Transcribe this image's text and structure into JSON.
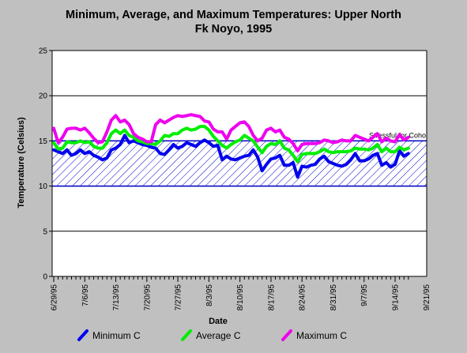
{
  "chart_data": {
    "type": "line",
    "title_line1": "Minimum, Average, and Maximum Temperatures:  Upper North",
    "title_line2": "Fk Noyo, 1995",
    "xlabel": "Date",
    "ylabel": "Temperature (Celsius)",
    "ylim": [
      0,
      25
    ],
    "yticks": [
      "0",
      "5",
      "10",
      "15",
      "20",
      "25"
    ],
    "x_start_date": "6/29/95",
    "x_tick_labels": [
      "6/29/95",
      "7/6/95",
      "7/13/95",
      "7/20/95",
      "7/27/95",
      "8/3/95",
      "8/10/95",
      "8/17/95",
      "8/24/95",
      "8/31/95",
      "9/7/95",
      "9/14/95",
      "9/21/95"
    ],
    "grid": "horizontal",
    "legend_position": "bottom",
    "threshold_band": {
      "label": "Stressful for Coho",
      "ymin": 10,
      "ymax": 15,
      "color": "#0000cc"
    },
    "series": [
      {
        "name": "Minimum C",
        "color": "#0000ee",
        "values": [
          14.0,
          13.8,
          13.6,
          14.0,
          13.4,
          13.6,
          14.0,
          13.6,
          13.8,
          13.4,
          13.2,
          12.9,
          13.1,
          14.0,
          14.2,
          14.6,
          15.6,
          14.8,
          15.0,
          14.8,
          14.6,
          14.5,
          14.3,
          14.2,
          13.6,
          13.5,
          14.0,
          14.6,
          14.2,
          14.4,
          14.8,
          14.6,
          14.4,
          14.8,
          15.1,
          14.8,
          14.4,
          14.5,
          12.9,
          13.3,
          13.0,
          12.9,
          13.1,
          13.3,
          13.4,
          14.0,
          13.2,
          11.7,
          12.4,
          13.0,
          13.1,
          13.4,
          12.3,
          12.3,
          12.6,
          11.0,
          12.2,
          12.1,
          12.3,
          12.4,
          13.0,
          13.3,
          12.7,
          12.5,
          12.3,
          12.2,
          12.4,
          12.9,
          13.6,
          12.8,
          12.8,
          13.0,
          13.4,
          13.6,
          12.3,
          12.6,
          12.1,
          12.4,
          13.9,
          13.3,
          13.6
        ]
      },
      {
        "name": "Average C",
        "color": "#00ee00",
        "values": [
          14.8,
          14.1,
          14.2,
          14.9,
          14.8,
          14.8,
          15.0,
          14.8,
          14.9,
          14.4,
          14.2,
          14.2,
          14.8,
          15.8,
          16.2,
          15.8,
          16.2,
          15.6,
          15.4,
          15.0,
          14.9,
          14.7,
          14.7,
          14.6,
          15.0,
          15.6,
          15.5,
          15.8,
          15.8,
          16.2,
          16.4,
          16.2,
          16.3,
          16.6,
          16.6,
          16.2,
          15.5,
          15.0,
          14.5,
          14.2,
          14.6,
          14.9,
          15.1,
          15.6,
          15.3,
          15.0,
          14.3,
          13.7,
          14.4,
          14.7,
          14.6,
          15.0,
          14.2,
          14.0,
          13.4,
          12.7,
          13.5,
          13.6,
          13.6,
          13.6,
          13.8,
          14.1,
          13.8,
          13.7,
          13.8,
          13.8,
          13.8,
          13.9,
          14.2,
          14.1,
          14.1,
          14.0,
          14.2,
          14.6,
          13.8,
          14.2,
          13.8,
          13.8,
          14.3,
          14.0,
          14.2
        ]
      },
      {
        "name": "Maximum C",
        "color": "#ee00ee",
        "values": [
          16.4,
          14.8,
          15.4,
          16.3,
          16.4,
          16.4,
          16.2,
          16.4,
          15.9,
          15.3,
          14.8,
          14.9,
          16.0,
          17.3,
          17.8,
          17.1,
          17.3,
          16.8,
          15.8,
          15.4,
          15.2,
          14.9,
          14.9,
          16.8,
          17.3,
          17.0,
          17.3,
          17.6,
          17.8,
          17.7,
          17.8,
          17.9,
          17.8,
          17.7,
          17.2,
          17.1,
          16.3,
          16.0,
          16.0,
          15.2,
          16.2,
          16.6,
          17.0,
          17.1,
          16.6,
          15.6,
          15.0,
          15.3,
          16.2,
          16.4,
          16.0,
          16.2,
          15.4,
          15.2,
          14.7,
          13.9,
          14.6,
          14.7,
          14.7,
          14.7,
          14.8,
          15.1,
          15.0,
          14.8,
          14.9,
          15.1,
          15.0,
          15.0,
          15.6,
          15.4,
          15.2,
          15.0,
          15.4,
          15.8,
          14.9,
          15.3,
          15.0,
          14.9,
          15.7,
          15.1,
          15.4
        ]
      }
    ]
  }
}
